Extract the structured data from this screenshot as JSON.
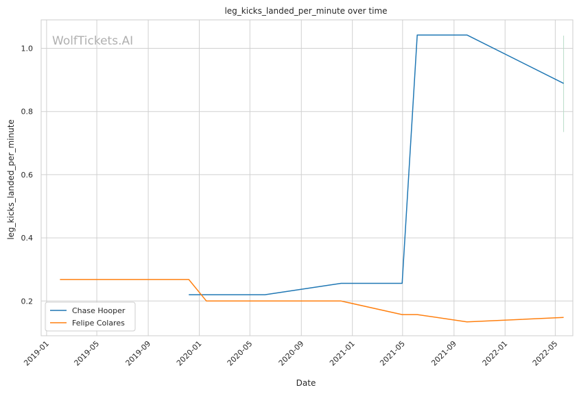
{
  "chart_data": {
    "type": "line",
    "title": "leg_kicks_landed_per_minute over time",
    "xlabel": "Date",
    "ylabel": "leg_kicks_landed_per_minute",
    "watermark": "WolfTickets.AI",
    "x_ticks": [
      "2019-01",
      "2019-05",
      "2019-09",
      "2020-01",
      "2020-05",
      "2020-09",
      "2021-01",
      "2021-05",
      "2021-09",
      "2022-01",
      "2022-05"
    ],
    "y_ticks": [
      "0.2",
      "0.4",
      "0.6",
      "0.8",
      "1.0"
    ],
    "xlim": [
      "2018-12-19",
      "2022-06-12"
    ],
    "ylim": [
      0.09,
      1.09
    ],
    "grid": true,
    "legend_position": "lower-left",
    "series": [
      {
        "name": "Chase Hooper",
        "color": "#1f77b4",
        "points": [
          {
            "x": "2019-12-07",
            "y": 0.22
          },
          {
            "x": "2020-06-06",
            "y": 0.22
          },
          {
            "x": "2020-12-05",
            "y": 0.256
          },
          {
            "x": "2021-04-30",
            "y": 0.256
          },
          {
            "x": "2021-06-05",
            "y": 1.042
          },
          {
            "x": "2021-10-02",
            "y": 1.042
          },
          {
            "x": "2022-05-21",
            "y": 0.889
          }
        ]
      },
      {
        "name": "Felipe Colares",
        "color": "#ff7f0e",
        "points": [
          {
            "x": "2019-02-02",
            "y": 0.268
          },
          {
            "x": "2019-12-07",
            "y": 0.268
          },
          {
            "x": "2020-01-18",
            "y": 0.2
          },
          {
            "x": "2020-12-05",
            "y": 0.2
          },
          {
            "x": "2021-04-30",
            "y": 0.157
          },
          {
            "x": "2021-06-05",
            "y": 0.157
          },
          {
            "x": "2021-10-02",
            "y": 0.134
          },
          {
            "x": "2022-05-21",
            "y": 0.148
          }
        ]
      }
    ],
    "error_bar": {
      "x": "2022-05-21",
      "y_low": 0.735,
      "y_high": 1.04,
      "color": "#b8dcc8"
    }
  }
}
